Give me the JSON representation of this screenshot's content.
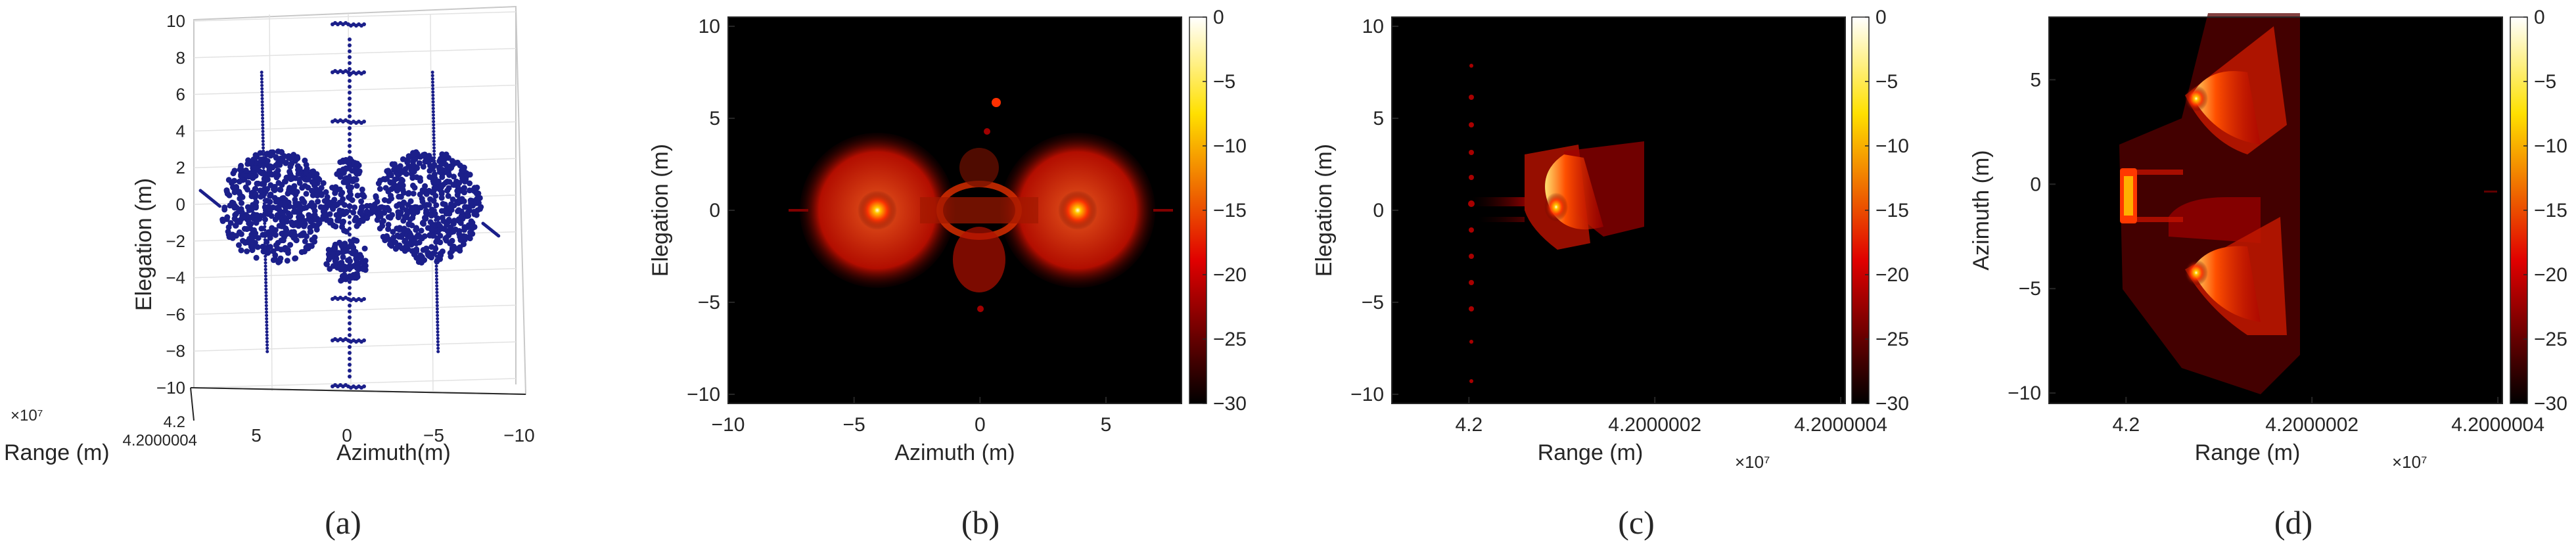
{
  "panels": [
    {
      "id": "a",
      "caption": "(a)",
      "chart_data": {
        "type": "scatter",
        "projection": "3d",
        "xlabel": "Range (m)",
        "ylabel": "Azimuth(m)",
        "zlabel": "Elegation (m)",
        "x_ticks": [
          "4.2",
          "4.2000004"
        ],
        "x_exponent": "×10⁷",
        "y_ticks": [
          "5",
          "0",
          "−5",
          "−10"
        ],
        "z_ticks": [
          "10",
          "8",
          "6",
          "4",
          "2",
          "0",
          "−2",
          "−4",
          "−6",
          "−8",
          "−10"
        ],
        "zlim": [
          -10,
          10
        ],
        "point_color": "#1b1f8a",
        "grid": true
      }
    },
    {
      "id": "b",
      "caption": "(b)",
      "chart_data": {
        "type": "heatmap",
        "xlabel": "Azimuth (m)",
        "ylabel": "Elegation (m)",
        "x_ticks": [
          "−10",
          "−5",
          "0",
          "5"
        ],
        "y_ticks": [
          "10",
          "5",
          "0",
          "−5",
          "−10"
        ],
        "xlim": [
          -10,
          8
        ],
        "ylim": [
          -10.5,
          10.5
        ],
        "colorbar": {
          "ticks": [
            "0",
            "−5",
            "−10",
            "−15",
            "−20",
            "−25",
            "−30"
          ],
          "range": [
            -30,
            0
          ],
          "colormap": "hot"
        }
      }
    },
    {
      "id": "c",
      "caption": "(c)",
      "chart_data": {
        "type": "heatmap",
        "xlabel": "Range (m)",
        "ylabel": "Elegation (m)",
        "x_ticks": [
          "4.2",
          "4.2000002",
          "4.2000004"
        ],
        "x_exponent": "×10⁷",
        "y_ticks": [
          "10",
          "5",
          "0",
          "−5",
          "−10"
        ],
        "ylim": [
          -10.5,
          10.5
        ],
        "colorbar": {
          "ticks": [
            "0",
            "−5",
            "−10",
            "−15",
            "−20",
            "−25",
            "−30"
          ],
          "range": [
            -30,
            0
          ],
          "colormap": "hot"
        }
      }
    },
    {
      "id": "d",
      "caption": "(d)",
      "chart_data": {
        "type": "heatmap",
        "xlabel": "Range (m)",
        "ylabel": "Azimuth (m)",
        "x_ticks": [
          "4.2",
          "4.2000002",
          "4.2000004"
        ],
        "x_exponent": "×10⁷",
        "y_ticks": [
          "5",
          "0",
          "−5",
          "−10"
        ],
        "ylim": [
          -10.5,
          8
        ],
        "colorbar": {
          "ticks": [
            "0",
            "−5",
            "−10",
            "−15",
            "−20",
            "−25",
            "−30"
          ],
          "range": [
            -30,
            0
          ],
          "colormap": "hot"
        }
      }
    }
  ]
}
